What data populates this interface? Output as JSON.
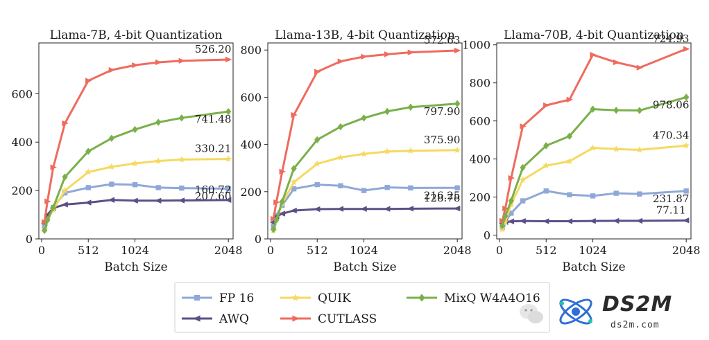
{
  "chart_data": [
    {
      "type": "line",
      "title": "Llama-7B, 4-bit Quantization",
      "xlabel": "Batch Size",
      "ylabel": "",
      "xlim": [
        -30,
        2100
      ],
      "ylim": [
        0,
        810
      ],
      "xticks": [
        0,
        512,
        1024,
        2048
      ],
      "xtick_labels": [
        "0",
        "512",
        "1024",
        "2048"
      ],
      "yticks": [
        0,
        200,
        400,
        600
      ],
      "ytick_labels": [
        "0",
        "200",
        "400",
        "600"
      ],
      "series": [
        {
          "name": "FP 16",
          "color": "#8fa8d8",
          "marker": "square",
          "x": [
            32,
            64,
            128,
            256,
            512,
            768,
            1024,
            1280,
            1536,
            2048
          ],
          "y": [
            50,
            88,
            130,
            190,
            212,
            226,
            224,
            212,
            210,
            207.6
          ]
        },
        {
          "name": "AWQ",
          "color": "#5b4f86",
          "marker": "triangle-left",
          "x": [
            32,
            64,
            128,
            256,
            512,
            768,
            1024,
            1280,
            1536,
            2048
          ],
          "y": [
            65,
            100,
            128,
            142,
            150,
            161,
            158,
            158,
            159,
            160.72
          ]
        },
        {
          "name": "QUIK",
          "color": "#f5d961",
          "marker": "star",
          "x": [
            32,
            64,
            128,
            256,
            512,
            768,
            1024,
            1280,
            1536,
            2048
          ],
          "y": [
            40,
            80,
            120,
            200,
            276,
            298,
            312,
            322,
            328,
            330.21
          ]
        },
        {
          "name": "CUTLASS",
          "color": "#ef6b5e",
          "marker": "triangle-right",
          "x": [
            32,
            64,
            128,
            256,
            512,
            768,
            1024,
            1280,
            1536,
            2048
          ],
          "y": [
            70,
            155,
            296,
            478,
            654,
            698,
            718,
            730,
            736,
            741.48
          ]
        },
        {
          "name": "MixQ W4A4O16",
          "color": "#7ab04a",
          "marker": "diamond",
          "x": [
            32,
            64,
            128,
            256,
            512,
            768,
            1024,
            1280,
            1536,
            2048
          ],
          "y": [
            35,
            78,
            130,
            256,
            362,
            416,
            452,
            482,
            500,
            526.2
          ]
        }
      ],
      "annotations": [
        "741.48",
        "526.20",
        "330.21",
        "207.60",
        "160.72"
      ]
    },
    {
      "type": "line",
      "title": "Llama-13B, 4-bit Quantization",
      "xlabel": "Batch Size",
      "ylabel": "",
      "xlim": [
        -30,
        2100
      ],
      "ylim": [
        0,
        830
      ],
      "xticks": [
        0,
        512,
        1024,
        2048
      ],
      "xtick_labels": [
        "0",
        "512",
        "1024",
        "2048"
      ],
      "yticks": [
        0,
        200,
        400,
        600,
        800
      ],
      "ytick_labels": [
        "0",
        "200",
        "400",
        "600",
        "800"
      ],
      "series": [
        {
          "name": "FP 16",
          "color": "#8fa8d8",
          "marker": "square",
          "x": [
            32,
            64,
            128,
            256,
            512,
            768,
            1024,
            1280,
            1536,
            2048
          ],
          "y": [
            55,
            100,
            142,
            212,
            230,
            225,
            205,
            218,
            216,
            216.25
          ]
        },
        {
          "name": "AWQ",
          "color": "#5b4f86",
          "marker": "triangle-left",
          "x": [
            32,
            64,
            128,
            256,
            512,
            768,
            1024,
            1280,
            1536,
            2048
          ],
          "y": [
            70,
            95,
            107,
            120,
            126,
            127,
            127,
            127,
            128,
            128.78
          ]
        },
        {
          "name": "QUIK",
          "color": "#f5d961",
          "marker": "star",
          "x": [
            32,
            64,
            128,
            256,
            512,
            768,
            1024,
            1280,
            1536,
            2048
          ],
          "y": [
            35,
            80,
            150,
            240,
            318,
            345,
            360,
            370,
            373,
            375.9
          ]
        },
        {
          "name": "CUTLASS",
          "color": "#ef6b5e",
          "marker": "triangle-right",
          "x": [
            32,
            64,
            128,
            256,
            512,
            768,
            1024,
            1280,
            1536,
            2048
          ],
          "y": [
            85,
            155,
            285,
            525,
            708,
            752,
            772,
            782,
            790,
            797.9
          ]
        },
        {
          "name": "MixQ W4A4O16",
          "color": "#7ab04a",
          "marker": "diamond",
          "x": [
            32,
            64,
            128,
            256,
            512,
            768,
            1024,
            1280,
            1536,
            2048
          ],
          "y": [
            40,
            80,
            158,
            298,
            420,
            475,
            512,
            540,
            558,
            572.63
          ]
        }
      ],
      "annotations": [
        "797.90",
        "572.63",
        "375.90",
        "216.25",
        "128.78"
      ]
    },
    {
      "type": "line",
      "title": "Llama-70B, 4-bit Quantization",
      "xlabel": "Batch Size",
      "ylabel": "",
      "xlim": [
        -30,
        2100
      ],
      "ylim": [
        -20,
        1010
      ],
      "xticks": [
        0,
        512,
        1024,
        2048
      ],
      "xtick_labels": [
        "0",
        "512",
        "1024",
        "2048"
      ],
      "yticks": [
        0,
        200,
        400,
        600,
        800,
        1000
      ],
      "ytick_labels": [
        "0",
        "200",
        "400",
        "600",
        "800",
        "1000"
      ],
      "series": [
        {
          "name": "FP 16",
          "color": "#8fa8d8",
          "marker": "square",
          "x": [
            32,
            64,
            128,
            256,
            512,
            768,
            1024,
            1280,
            1536,
            2048
          ],
          "y": [
            40,
            70,
            115,
            180,
            232,
            212,
            206,
            220,
            216,
            231.87
          ]
        },
        {
          "name": "AWQ",
          "color": "#5b4f86",
          "marker": "triangle-left",
          "x": [
            32,
            64,
            128,
            256,
            512,
            768,
            1024,
            1280,
            1536,
            2048
          ],
          "y": [
            60,
            68,
            72,
            74,
            73,
            73,
            74,
            75,
            75,
            77.11
          ]
        },
        {
          "name": "QUIK",
          "color": "#f5d961",
          "marker": "star",
          "x": [
            32,
            64,
            128,
            256,
            512,
            768,
            1024,
            1280,
            1536,
            2048
          ],
          "y": [
            30,
            70,
            160,
            290,
            365,
            388,
            458,
            452,
            448,
            470.34
          ]
        },
        {
          "name": "CUTLASS",
          "color": "#ef6b5e",
          "marker": "triangle-right",
          "x": [
            32,
            64,
            128,
            256,
            512,
            768,
            1024,
            1280,
            1536,
            2048
          ],
          "y": [
            75,
            140,
            300,
            572,
            682,
            712,
            948,
            908,
            880,
            978.06
          ]
        },
        {
          "name": "MixQ W4A4O16",
          "color": "#7ab04a",
          "marker": "diamond",
          "x": [
            32,
            64,
            128,
            256,
            512,
            768,
            1024,
            1280,
            1536,
            2048
          ],
          "y": [
            50,
            100,
            180,
            355,
            470,
            520,
            662,
            656,
            655,
            724.93
          ]
        }
      ],
      "annotations": [
        "978.06",
        "724.93",
        "470.34",
        "231.87",
        "77.11"
      ]
    }
  ],
  "legend": {
    "placement": "bottom-center",
    "entries": [
      {
        "name": "FP 16",
        "color": "#8fa8d8",
        "marker": "square"
      },
      {
        "name": "AWQ",
        "color": "#5b4f86",
        "marker": "triangle-left"
      },
      {
        "name": "QUIK",
        "color": "#f5d961",
        "marker": "star"
      },
      {
        "name": "CUTLASS",
        "color": "#ef6b5e",
        "marker": "triangle-right"
      },
      {
        "name": "MixQ W4A4O16",
        "color": "#7ab04a",
        "marker": "diamond"
      }
    ]
  },
  "watermark": {
    "brand": "DS2M",
    "domain": "ds2m.com"
  }
}
